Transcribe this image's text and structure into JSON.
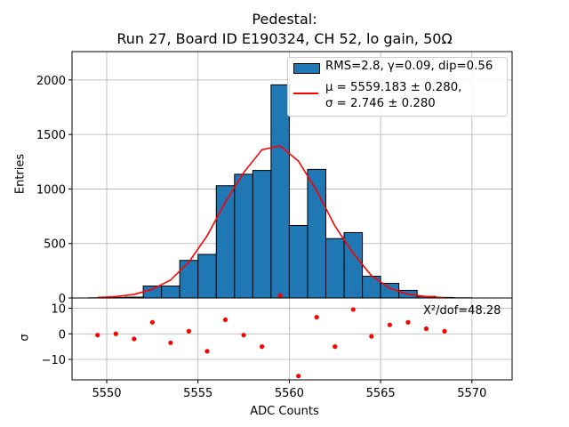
{
  "chart_data": [
    {
      "type": "bar",
      "title": "Pedestal:",
      "subtitle": "Run 27, Board ID E190324, CH 52, lo gain, 50Ω",
      "xlabel": "",
      "ylabel": "Entries",
      "xlim": [
        5548.1,
        5572.2
      ],
      "ylim": [
        0,
        2260
      ],
      "grid": true,
      "legend_position": "top-right",
      "bin_width": 1,
      "bin_left_edges": [
        5549,
        5550,
        5551,
        5552,
        5553,
        5554,
        5555,
        5556,
        5557,
        5558,
        5559,
        5560,
        5561,
        5562,
        5563,
        5564,
        5565,
        5566,
        5567,
        5568,
        5569
      ],
      "values": [
        2,
        5,
        8,
        110,
        110,
        345,
        400,
        1030,
        1135,
        1170,
        1955,
        665,
        1180,
        545,
        600,
        200,
        135,
        70,
        15,
        5,
        2
      ],
      "series": [
        {
          "name": "RMS=2.8, γ=0.09, dip=0.56",
          "type": "bar",
          "color": "#1f77b4"
        },
        {
          "name": "μ = 5559.183 ± 0.280, σ = 2.746 ± 0.280",
          "type": "line",
          "color": "#ff0000",
          "x": [
            5549.5,
            5550.5,
            5551.5,
            5552.5,
            5553.5,
            5554.5,
            5555.5,
            5556.5,
            5557.5,
            5558.5,
            5559.5,
            5560.5,
            5561.5,
            5562.5,
            5563.5,
            5564.5,
            5565.5,
            5566.5,
            5567.5,
            5568.5
          ],
          "y": [
            5,
            13,
            33,
            80,
            165,
            330,
            570,
            880,
            1150,
            1360,
            1395,
            1255,
            985,
            660,
            410,
            205,
            90,
            35,
            13,
            3
          ]
        }
      ],
      "legend_lines": {
        "bar": "RMS=2.8, γ=0.09, dip=0.56",
        "fit_mu": "μ = 5559.183 ± 0.280,",
        "fit_sigma": "σ = 2.746 ± 0.280"
      },
      "yticks": [
        0,
        500,
        1000,
        1500,
        2000
      ]
    },
    {
      "type": "scatter",
      "xlabel": "ADC Counts",
      "ylabel": "σ",
      "xlim": [
        5548.1,
        5572.2
      ],
      "ylim": [
        -18,
        14
      ],
      "grid": true,
      "annotation": "X²/dof=48.28",
      "color": "#ff0000",
      "x": [
        5549.5,
        5550.5,
        5551.5,
        5552.5,
        5553.5,
        5554.5,
        5555.5,
        5556.5,
        5557.5,
        5558.5,
        5559.5,
        5560.5,
        5561.5,
        5562.5,
        5563.5,
        5564.5,
        5565.5,
        5566.5,
        5567.5,
        5568.5
      ],
      "y": [
        -0.5,
        0,
        -2,
        4.5,
        -3.5,
        1,
        -6.8,
        5.5,
        -0.5,
        -5,
        15,
        -16.5,
        6.5,
        -5,
        9.5,
        -1,
        3.5,
        4.5,
        2,
        1
      ],
      "xticks": [
        5550,
        5555,
        5560,
        5565,
        5570
      ],
      "yticks": [
        -10,
        0,
        10
      ]
    }
  ]
}
